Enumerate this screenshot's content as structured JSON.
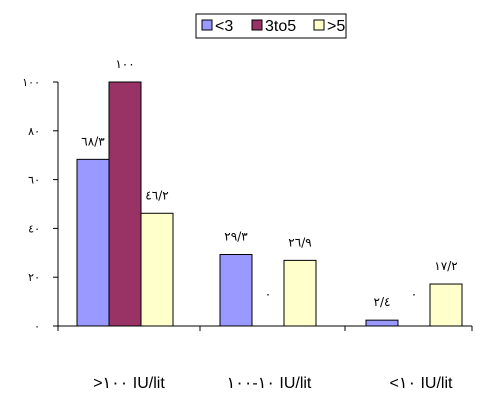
{
  "chart_data": {
    "type": "bar",
    "categories": [
      ">١٠٠ IU/lit",
      "١٠-١٠٠ IU/lit",
      "<١٠ IU/lit"
    ],
    "series": [
      {
        "name": "<3",
        "color": "#9999ff",
        "values": [
          68.3,
          29.3,
          2.4
        ],
        "labels": [
          "٦٨/٣",
          "٢٩/٣",
          "٢/٤"
        ]
      },
      {
        "name": "3to5",
        "color": "#993366",
        "values": [
          100,
          0,
          0
        ],
        "labels": [
          "١٠٠",
          "٠",
          "٠"
        ]
      },
      {
        "name": ">5",
        "color": "#ffffcc",
        "values": [
          46.2,
          26.9,
          17.2
        ],
        "labels": [
          "٤٦/٢",
          "٢٦/٩",
          "١٧/٢"
        ]
      }
    ],
    "ylim": [
      0,
      100
    ],
    "yticks": [
      0,
      20,
      40,
      60,
      80,
      100
    ],
    "ytick_labels": [
      "٠",
      "٢٠",
      "٤٠",
      "٦٠",
      "٨٠",
      "١٠٠"
    ],
    "grid": false,
    "legend": "top-center",
    "title": "",
    "xlabel": "",
    "ylabel": ""
  }
}
